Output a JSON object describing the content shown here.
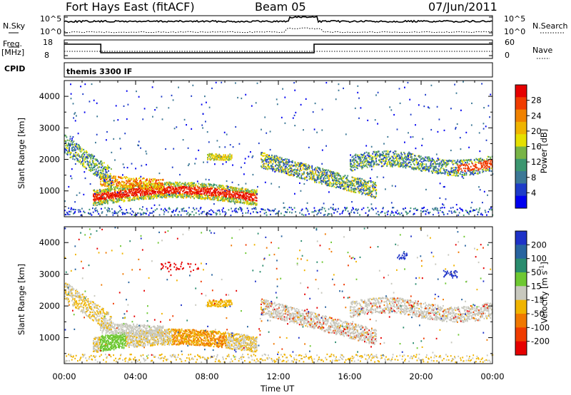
{
  "header": {
    "station": "Fort Hays East (fitACF)",
    "beam": "Beam 05",
    "date": "07/Jun/2011"
  },
  "strip_panels": {
    "noise": {
      "left_label": "N.Sky",
      "right_label": "N.Search",
      "left_ticks": [
        "10^5",
        "10^0"
      ],
      "right_ticks": [
        "10^5",
        "10^0"
      ]
    },
    "freq": {
      "left_label_top": "Freq.",
      "left_label_unit": "[MHz]",
      "right_label": "Nave",
      "left_ticks": [
        "18",
        "8"
      ],
      "right_ticks": [
        "60",
        "0"
      ]
    },
    "cpid": {
      "label": "CPID",
      "text": "themis 3300 IF"
    }
  },
  "chart_data": [
    {
      "type": "heatmap",
      "title": "",
      "parameter": "Power",
      "ylabel": "Slant Range [km]",
      "ylim": [
        180,
        4500
      ],
      "yticks": [
        "1000",
        "2000",
        "3000",
        "4000"
      ],
      "colorbar": {
        "label": "Power [dB]",
        "ticks": [
          "4",
          "8",
          "12",
          "16",
          "20",
          "24",
          "28"
        ],
        "range": [
          0,
          32
        ],
        "colors": [
          "#0000f0",
          "#1e3cc8",
          "#3c7896",
          "#3c9670",
          "#78b446",
          "#e6e000",
          "#f0b400",
          "#f08200",
          "#f03c00",
          "#e60000"
        ]
      }
    },
    {
      "type": "heatmap",
      "title": "",
      "parameter": "Velocity",
      "ylabel": "Slant Range [km]",
      "ylim": [
        180,
        4500
      ],
      "yticks": [
        "1000",
        "2000",
        "3000",
        "4000"
      ],
      "colorbar": {
        "label": "Velocity [m s",
        "label_sup": "-1",
        "label_close": "]",
        "ticks": [
          "200",
          "100",
          "50",
          "15",
          "-15",
          "-50",
          "-100",
          "-200"
        ],
        "colors": [
          "#1e32c8",
          "#2864a0",
          "#2a8c6e",
          "#6ec832",
          "#c8c8be",
          "#f0b400",
          "#f07800",
          "#f03c00",
          "#e60000"
        ]
      }
    }
  ],
  "time_axis": {
    "xlabel": "Time UT",
    "ticks": [
      "00:00",
      "04:00",
      "08:00",
      "12:00",
      "16:00",
      "20:00",
      "00:00"
    ],
    "xlim_hours": [
      0,
      24
    ]
  }
}
